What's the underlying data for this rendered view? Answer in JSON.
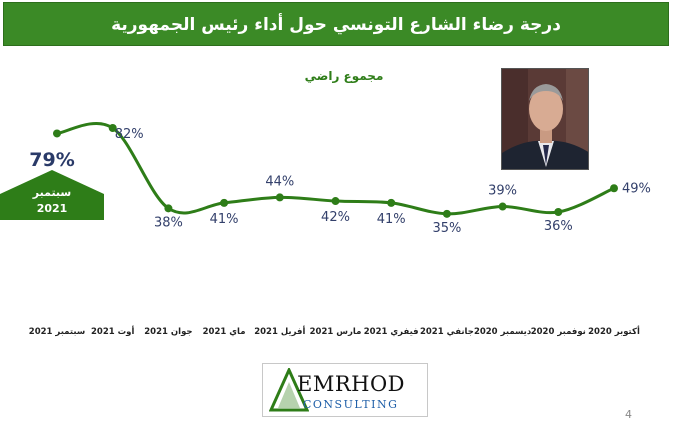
{
  "title": "درجة رضاء الشارع التونسي حول أداء رئيس الجمهورية",
  "badge": {
    "value": "79%",
    "line1": "سبتمبر",
    "line2": "2021"
  },
  "chart_data": {
    "type": "line",
    "subtitle": "مجموع راضي",
    "categories": [
      "سبتمبر 2021",
      "أوت 2021",
      "جوان 2021",
      "ماي 2021",
      "أفريل 2021",
      "مارس 2021",
      "فيفري 2021",
      "جانفي 2021",
      "ديسمبر 2020",
      "نوفمبر 2020",
      "أكتوبر 2020"
    ],
    "series": [
      {
        "values": [
          79,
          82,
          38,
          41,
          44,
          42,
          41,
          35,
          39,
          36,
          49
        ]
      }
    ],
    "data_labels": [
      "",
      "82%",
      "38%",
      "41%",
      "44%",
      "42%",
      "41%",
      "35%",
      "39%",
      "36%",
      "49%"
    ],
    "line_color": "#2e7d18",
    "label_color": "#33406b"
  },
  "logo": {
    "name": "EMRHOD",
    "sub": "CONSULTING"
  },
  "page_number": "4"
}
